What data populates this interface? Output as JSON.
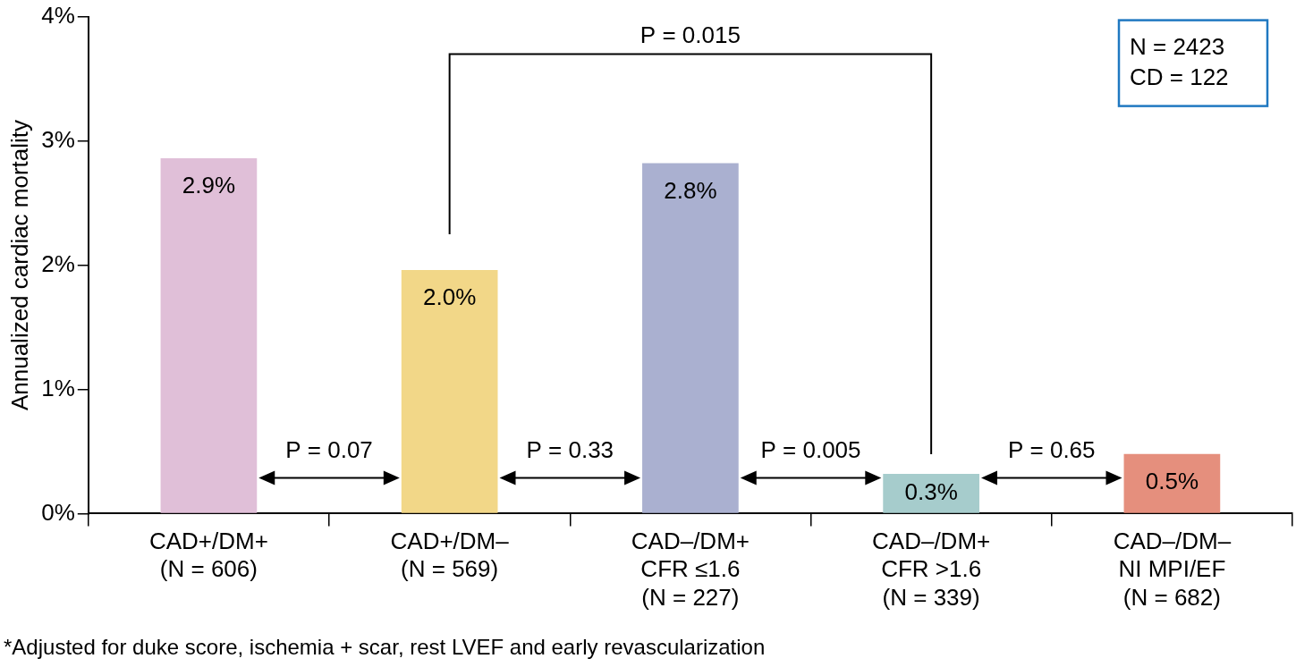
{
  "chart_data": {
    "type": "bar",
    "y_label": "Annualized cardiac mortality",
    "categories": [
      [
        "CAD+/DM+",
        "(N = 606)"
      ],
      [
        "CAD+/DM–",
        "(N = 569)"
      ],
      [
        "CAD–/DM+",
        "CFR ≤1.6",
        "(N = 227)"
      ],
      [
        "CAD–/DM+",
        "CFR >1.6",
        "(N = 339)"
      ],
      [
        "CAD–/DM–",
        "NI MPI/EF",
        "(N = 682)"
      ]
    ],
    "values": [
      2.86,
      1.96,
      2.82,
      0.32,
      0.48
    ],
    "value_labels": [
      "2.9%",
      "2.0%",
      "2.8%",
      "0.3%",
      "0.5%"
    ],
    "data_labels": true,
    "colors": [
      "#e0bfd8",
      "#f2d788",
      "#aab0d0",
      "#a6cccc",
      "#e58f7d"
    ],
    "ylim": [
      0,
      4
    ],
    "yticks": [
      {
        "value": 0,
        "label": "0%"
      },
      {
        "value": 1,
        "label": "1%"
      },
      {
        "value": 2,
        "label": "2%"
      },
      {
        "value": 3,
        "label": "3%"
      },
      {
        "value": 4,
        "label": "4%"
      }
    ],
    "grid": false,
    "annotations": [
      {
        "text": "P = 0.07",
        "between": [
          0,
          1
        ]
      },
      {
        "text": "P = 0.33",
        "between": [
          1,
          2
        ]
      },
      {
        "text": "P = 0.005",
        "between": [
          2,
          3
        ]
      },
      {
        "text": "P = 0.65",
        "between": [
          3,
          4
        ]
      },
      {
        "text": "P = 0.015",
        "between": [
          1,
          3
        ]
      }
    ],
    "box_text": [
      "N = 2423",
      "CD = 122"
    ],
    "footnote": "*Adjusted for duke score, ischemia + scar, rest LVEF and early revascularization"
  }
}
